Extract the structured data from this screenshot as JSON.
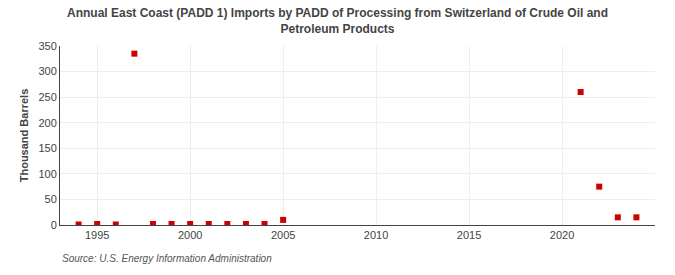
{
  "chart_data": {
    "type": "scatter",
    "title": "Annual East Coast (PADD 1) Imports by PADD of Processing from Switzerland of Crude Oil and\nPetroleum Products",
    "ylabel": "Thousand Barrels",
    "annotations": [
      "Source: U.S. Energy Information Administration"
    ],
    "x": [
      1994,
      1995,
      1996,
      1997,
      1998,
      1999,
      2000,
      2001,
      2002,
      2003,
      2004,
      2005,
      2021,
      2022,
      2023,
      2024
    ],
    "values": [
      1,
      2,
      1,
      335,
      2,
      2,
      2,
      2,
      2,
      2,
      2,
      10,
      260,
      75,
      15,
      15
    ],
    "color": "#cc0000",
    "marker": "square",
    "xlim": [
      1993,
      2025
    ],
    "ylim": [
      0,
      350
    ],
    "xticks": [
      1995,
      2000,
      2005,
      2010,
      2015,
      2020
    ],
    "yticks": [
      0,
      50,
      100,
      150,
      200,
      250,
      300,
      350
    ],
    "grid": true
  }
}
